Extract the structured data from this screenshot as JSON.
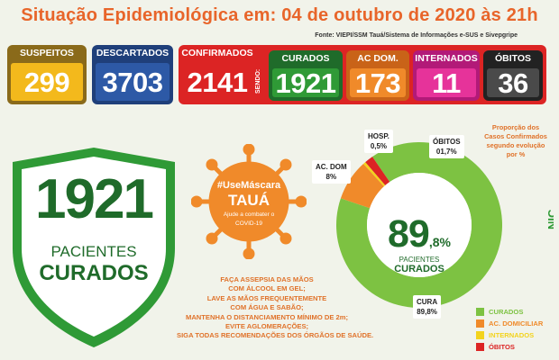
{
  "header": {
    "title": "Situação Epidemiológica em: 04 de outubro de 2020 às 21h",
    "source": "Fonte: VIEPI/SSM Tauá/Sistema de Informações e-SUS e Sivepgripe"
  },
  "stats": [
    {
      "label": "SUSPEITOS",
      "value": "299",
      "color": "#f3b91c",
      "head": "#8a6a1a"
    },
    {
      "label": "DESCARTADOS",
      "value": "3703",
      "color": "#2d59a6",
      "head": "#1f3f7a"
    },
    {
      "label": "CONFIRMADOS",
      "value": "2141",
      "color": "#dc2424",
      "head": "#b21a1a"
    },
    {
      "label": "CURADOS",
      "value": "1921",
      "color": "#2f9a36",
      "head": "#1f6b2a"
    },
    {
      "label": "AC DOM.",
      "value": "173",
      "color": "#f08a2a",
      "head": "#c96318"
    },
    {
      "label": "INTERNADOS",
      "value": "11",
      "color": "#e6339a",
      "head": "#b21a78"
    },
    {
      "label": "ÓBITOS",
      "value": "36",
      "color": "#4a4a4a",
      "head": "#222222"
    }
  ],
  "sendo_label": "SENDO:",
  "shield": {
    "number": "1921",
    "line1": "PACIENTES",
    "line2": "CURADOS"
  },
  "campaign": {
    "hashtag": "#UseMáscara",
    "city": "TAUÁ",
    "sub1": "Ajude a combater o",
    "sub2": "COVID-19"
  },
  "advice": [
    "FAÇA ASSEPSIA DAS MÃOS",
    "COM ÁLCOOL EM GEL;",
    "LAVE AS MÃOS FREQUENTEMENTE",
    "COM ÁGUA E SABÃO;",
    "MANTENHA O DISTANCIAMENTO MÍNIMO DE 2m;",
    "EVITE AGLOMERAÇÕES;",
    "SIGA TODAS RECOMENDAÇÕES DOS ÓRGÃOS DE SAÚDE."
  ],
  "donut": {
    "center_number": "89",
    "center_suffix": ",8%",
    "center_line1": "PACIENTES",
    "center_line2": "CURADOS",
    "proportion_note": [
      "Proporção dos",
      "Casos Confirmados",
      "segundo evolução",
      "por %"
    ],
    "callouts": {
      "ac_dom": [
        "AC. DOM",
        "8%"
      ],
      "hosp": [
        "HOSP.",
        "0,5%"
      ],
      "obitos": [
        "ÓBITOS",
        "01,7%"
      ],
      "cura": [
        "CURA",
        "89,8%"
      ]
    }
  },
  "chart_data": {
    "type": "pie",
    "title": "Proporção dos Casos Confirmados segundo evolução por %",
    "categories": [
      "CURADOS",
      "AC. DOMICILIAR",
      "INTERNADOS",
      "ÓBITOS"
    ],
    "values": [
      89.8,
      8,
      0.5,
      1.7
    ],
    "colors": [
      "#7dc242",
      "#f08a2a",
      "#f3d31c",
      "#dc2424"
    ],
    "legend_position": "bottom-right"
  },
  "legend": [
    {
      "label": "CURADOS",
      "color": "#7dc242"
    },
    {
      "label": "AC. DOMICILIAR",
      "color": "#f08a2a"
    },
    {
      "label": "INTERNADOS",
      "color": "#f3d31c"
    },
    {
      "label": "ÓBITOS",
      "color": "#dc2424"
    }
  ],
  "logo_text": "NIC"
}
